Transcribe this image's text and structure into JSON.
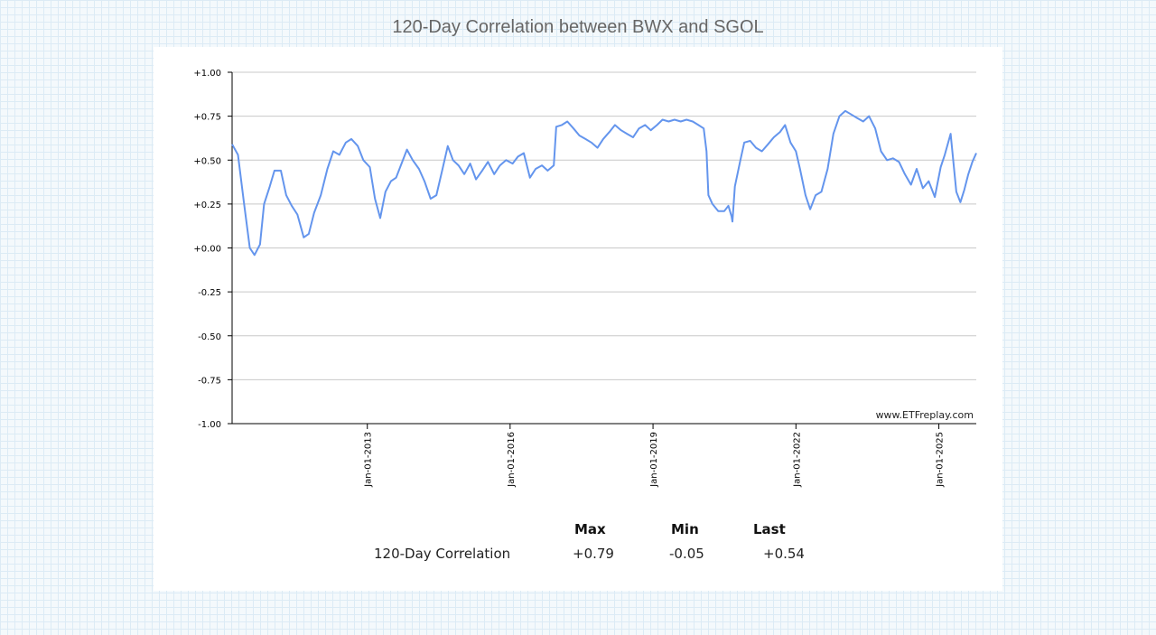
{
  "page": {
    "title": "120-Day Correlation between BWX and SGOL"
  },
  "chart_data": {
    "type": "line",
    "title": "120-Day Correlation between BWX and SGOL",
    "ylim": [
      -1.0,
      1.0
    ],
    "xlim": [
      "2010-03-01",
      "2025-10-15"
    ],
    "y_ticks": [
      "+1.00",
      "+0.75",
      "+0.50",
      "+0.25",
      "+0.00",
      "-0.25",
      "-0.50",
      "-0.75",
      "-1.00"
    ],
    "y_tick_values": [
      1.0,
      0.75,
      0.5,
      0.25,
      0.0,
      -0.25,
      -0.5,
      -0.75,
      -1.0
    ],
    "x_ticks": [
      {
        "label": "Jan-01-2013",
        "date": "2013-01-01"
      },
      {
        "label": "Jan-01-2016",
        "date": "2016-01-01"
      },
      {
        "label": "Jan-01-2019",
        "date": "2019-01-01"
      },
      {
        "label": "Jan-01-2022",
        "date": "2022-01-01"
      },
      {
        "label": "Jan-01-2025",
        "date": "2025-01-01"
      }
    ],
    "grid": true,
    "watermark": "www.ETFreplay.com",
    "series": [
      {
        "name": "120-Day Correlation",
        "color": "#6495ed",
        "points": [
          [
            "2010-03-01",
            0.59
          ],
          [
            "2010-04-15",
            0.53
          ],
          [
            "2010-06-01",
            0.25
          ],
          [
            "2010-07-15",
            0.0
          ],
          [
            "2010-08-20",
            -0.04
          ],
          [
            "2010-10-01",
            0.02
          ],
          [
            "2010-11-01",
            0.25
          ],
          [
            "2010-12-15",
            0.35
          ],
          [
            "2011-01-20",
            0.44
          ],
          [
            "2011-03-10",
            0.44
          ],
          [
            "2011-04-20",
            0.3
          ],
          [
            "2011-06-01",
            0.24
          ],
          [
            "2011-07-15",
            0.19
          ],
          [
            "2011-09-01",
            0.06
          ],
          [
            "2011-10-10",
            0.08
          ],
          [
            "2011-11-20",
            0.2
          ],
          [
            "2012-01-10",
            0.3
          ],
          [
            "2012-03-01",
            0.45
          ],
          [
            "2012-04-15",
            0.55
          ],
          [
            "2012-06-01",
            0.53
          ],
          [
            "2012-07-20",
            0.6
          ],
          [
            "2012-09-01",
            0.62
          ],
          [
            "2012-10-20",
            0.58
          ],
          [
            "2012-12-01",
            0.5
          ],
          [
            "2013-01-20",
            0.46
          ],
          [
            "2013-03-01",
            0.28
          ],
          [
            "2013-04-10",
            0.17
          ],
          [
            "2013-05-20",
            0.32
          ],
          [
            "2013-07-01",
            0.38
          ],
          [
            "2013-08-10",
            0.4
          ],
          [
            "2013-09-20",
            0.48
          ],
          [
            "2013-11-01",
            0.56
          ],
          [
            "2013-12-15",
            0.5
          ],
          [
            "2014-02-01",
            0.45
          ],
          [
            "2014-03-15",
            0.38
          ],
          [
            "2014-05-01",
            0.28
          ],
          [
            "2014-06-15",
            0.3
          ],
          [
            "2014-08-01",
            0.45
          ],
          [
            "2014-09-10",
            0.58
          ],
          [
            "2014-10-20",
            0.5
          ],
          [
            "2014-12-01",
            0.47
          ],
          [
            "2015-01-15",
            0.42
          ],
          [
            "2015-03-01",
            0.48
          ],
          [
            "2015-04-15",
            0.39
          ],
          [
            "2015-06-01",
            0.44
          ],
          [
            "2015-07-15",
            0.49
          ],
          [
            "2015-09-01",
            0.42
          ],
          [
            "2015-10-15",
            0.47
          ],
          [
            "2015-12-01",
            0.5
          ],
          [
            "2016-01-20",
            0.48
          ],
          [
            "2016-03-01",
            0.52
          ],
          [
            "2016-04-15",
            0.54
          ],
          [
            "2016-06-01",
            0.4
          ],
          [
            "2016-07-15",
            0.45
          ],
          [
            "2016-09-01",
            0.47
          ],
          [
            "2016-10-15",
            0.44
          ],
          [
            "2016-12-01",
            0.47
          ],
          [
            "2016-12-20",
            0.69
          ],
          [
            "2017-02-01",
            0.7
          ],
          [
            "2017-03-15",
            0.72
          ],
          [
            "2017-05-01",
            0.68
          ],
          [
            "2017-06-15",
            0.64
          ],
          [
            "2017-08-01",
            0.62
          ],
          [
            "2017-09-15",
            0.6
          ],
          [
            "2017-11-01",
            0.57
          ],
          [
            "2017-12-15",
            0.62
          ],
          [
            "2018-02-01",
            0.66
          ],
          [
            "2018-03-15",
            0.7
          ],
          [
            "2018-05-01",
            0.67
          ],
          [
            "2018-06-15",
            0.65
          ],
          [
            "2018-08-01",
            0.63
          ],
          [
            "2018-09-15",
            0.68
          ],
          [
            "2018-11-01",
            0.7
          ],
          [
            "2018-12-15",
            0.67
          ],
          [
            "2019-02-01",
            0.7
          ],
          [
            "2019-03-15",
            0.73
          ],
          [
            "2019-05-01",
            0.72
          ],
          [
            "2019-06-15",
            0.73
          ],
          [
            "2019-08-01",
            0.72
          ],
          [
            "2019-09-15",
            0.73
          ],
          [
            "2019-11-01",
            0.72
          ],
          [
            "2019-12-15",
            0.7
          ],
          [
            "2020-01-25",
            0.68
          ],
          [
            "2020-02-15",
            0.55
          ],
          [
            "2020-03-01",
            0.3
          ],
          [
            "2020-04-01",
            0.25
          ],
          [
            "2020-05-15",
            0.21
          ],
          [
            "2020-07-01",
            0.21
          ],
          [
            "2020-08-01",
            0.24
          ],
          [
            "2020-08-25",
            0.18
          ],
          [
            "2020-09-01",
            0.15
          ],
          [
            "2020-09-20",
            0.35
          ],
          [
            "2020-11-01",
            0.5
          ],
          [
            "2020-12-01",
            0.6
          ],
          [
            "2021-01-15",
            0.61
          ],
          [
            "2021-03-01",
            0.57
          ],
          [
            "2021-04-15",
            0.55
          ],
          [
            "2021-06-01",
            0.59
          ],
          [
            "2021-07-15",
            0.63
          ],
          [
            "2021-09-01",
            0.66
          ],
          [
            "2021-10-10",
            0.7
          ],
          [
            "2021-11-20",
            0.6
          ],
          [
            "2022-01-01",
            0.55
          ],
          [
            "2022-02-01",
            0.45
          ],
          [
            "2022-03-15",
            0.3
          ],
          [
            "2022-04-20",
            0.22
          ],
          [
            "2022-06-01",
            0.3
          ],
          [
            "2022-07-15",
            0.32
          ],
          [
            "2022-09-01",
            0.45
          ],
          [
            "2022-10-15",
            0.65
          ],
          [
            "2022-12-01",
            0.75
          ],
          [
            "2023-01-15",
            0.78
          ],
          [
            "2023-03-01",
            0.76
          ],
          [
            "2023-04-15",
            0.74
          ],
          [
            "2023-06-01",
            0.72
          ],
          [
            "2023-07-15",
            0.75
          ],
          [
            "2023-09-01",
            0.68
          ],
          [
            "2023-10-15",
            0.55
          ],
          [
            "2023-12-01",
            0.5
          ],
          [
            "2024-01-15",
            0.51
          ],
          [
            "2024-03-01",
            0.49
          ],
          [
            "2024-04-15",
            0.42
          ],
          [
            "2024-06-01",
            0.36
          ],
          [
            "2024-07-15",
            0.45
          ],
          [
            "2024-09-01",
            0.34
          ],
          [
            "2024-10-15",
            0.38
          ],
          [
            "2024-12-01",
            0.29
          ],
          [
            "2025-01-15",
            0.46
          ],
          [
            "2025-02-15",
            0.53
          ],
          [
            "2025-04-01",
            0.65
          ],
          [
            "2025-05-15",
            0.32
          ],
          [
            "2025-06-15",
            0.26
          ],
          [
            "2025-07-15",
            0.33
          ],
          [
            "2025-08-15",
            0.42
          ],
          [
            "2025-09-15",
            0.49
          ],
          [
            "2025-10-15",
            0.54
          ]
        ]
      }
    ]
  },
  "stats": {
    "headers": [
      "Max",
      "Min",
      "Last"
    ],
    "row_label": "120-Day Correlation",
    "values": [
      "+0.79",
      "-0.05",
      "+0.54"
    ]
  }
}
